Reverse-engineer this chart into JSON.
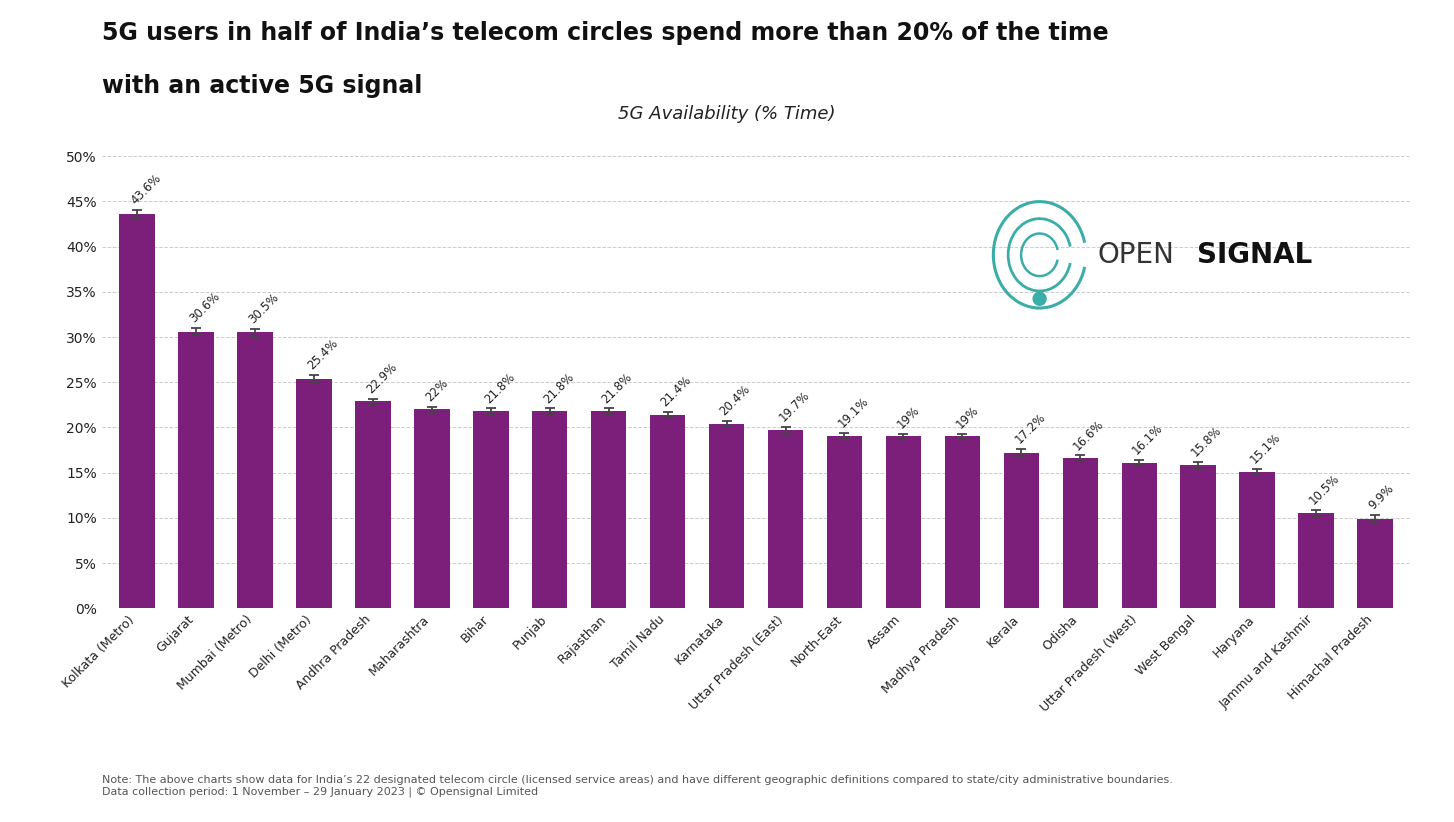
{
  "title_line1": "5G users in half of India’s telecom circles spend more than 20% of the time",
  "title_line2": "with an active 5G signal",
  "subtitle": "5G Availability (% Time)",
  "categories": [
    "Kolkata (Metro)",
    "Gujarat",
    "Mumbai (Metro)",
    "Delhi (Metro)",
    "Andhra Pradesh",
    "Maharashtra",
    "Bihar",
    "Punjab",
    "Rajasthan",
    "Tamil Nadu",
    "Karnataka",
    "Uttar Pradesh (East)",
    "North-East",
    "Assam",
    "Madhya Pradesh",
    "Kerala",
    "Odisha",
    "Uttar Pradesh (West)",
    "West Bengal",
    "Haryana",
    "Jammu and Kashmir",
    "Himachal Pradesh"
  ],
  "values": [
    43.6,
    30.6,
    30.5,
    25.4,
    22.9,
    22.0,
    21.8,
    21.8,
    21.8,
    21.4,
    20.4,
    19.7,
    19.1,
    19.0,
    19.0,
    17.2,
    16.6,
    16.1,
    15.8,
    15.1,
    10.5,
    9.9
  ],
  "errors": [
    0.5,
    0.4,
    0.4,
    0.4,
    0.3,
    0.3,
    0.3,
    0.3,
    0.3,
    0.3,
    0.3,
    0.4,
    0.3,
    0.3,
    0.3,
    0.4,
    0.3,
    0.3,
    0.4,
    0.3,
    0.4,
    0.4
  ],
  "bar_color": "#7B1F7A",
  "error_color": "#444444",
  "background_color": "#ffffff",
  "grid_color": "#cccccc",
  "title_color": "#111111",
  "label_color": "#222222",
  "ylabel_max": 50,
  "yticks": [
    0,
    5,
    10,
    15,
    20,
    25,
    30,
    35,
    40,
    45,
    50
  ],
  "note_text": "Note: The above charts show data for India’s 22 designated telecom circle (licensed service areas) and have different geographic definitions compared to state/city administrative boundaries.\nData collection period: 1 November – 29 January 2023 | © Opensignal Limited",
  "teal_color": "#3aada8",
  "value_label_fontsize": 8.5,
  "xtick_fontsize": 9.0,
  "ytick_fontsize": 10.0,
  "title_fontsize": 17,
  "subtitle_fontsize": 13,
  "note_fontsize": 8.0
}
